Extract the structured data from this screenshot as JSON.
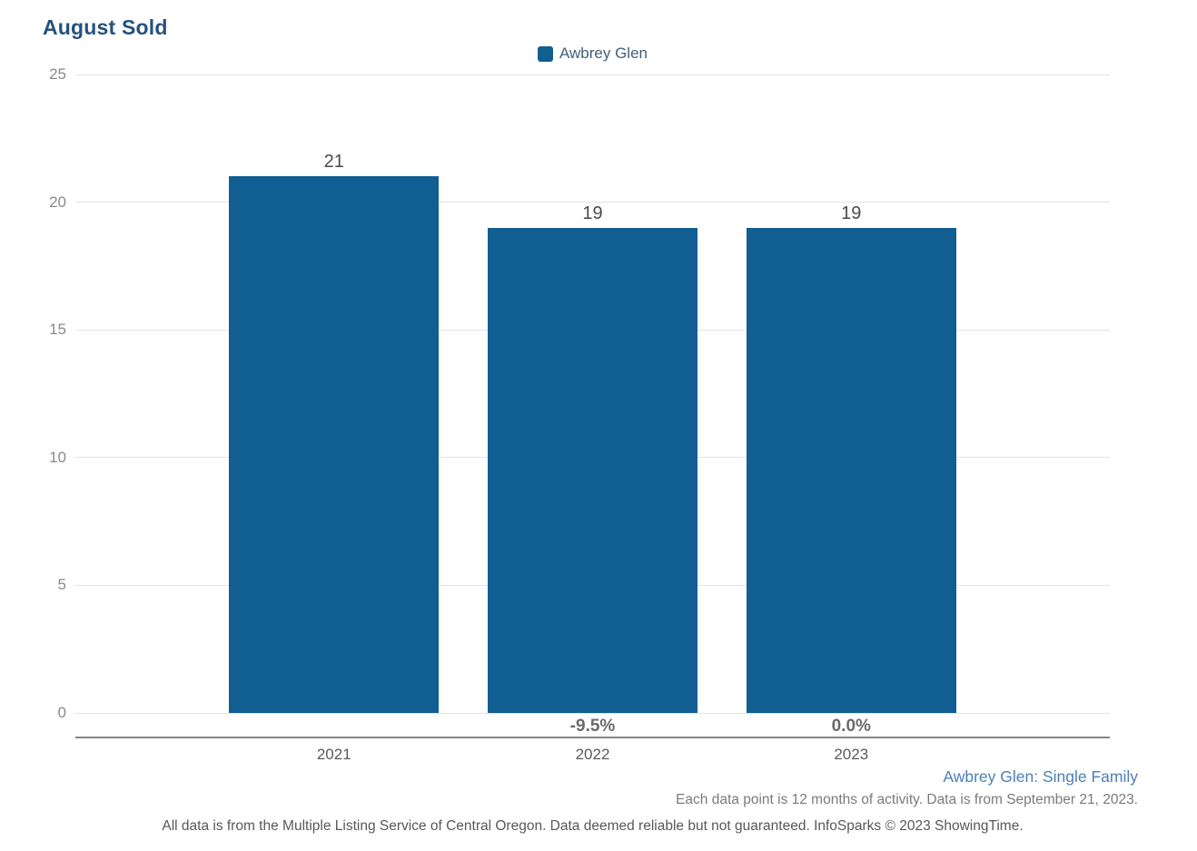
{
  "title": "August Sold",
  "legend": {
    "label": "Awbrey Glen"
  },
  "colors": {
    "bar": "#115e92",
    "title": "#25517c",
    "link": "#4d7fb5"
  },
  "chart_data": {
    "type": "bar",
    "title": "August Sold",
    "series_name": "Awbrey Glen",
    "categories": [
      "2021",
      "2022",
      "2023"
    ],
    "values": [
      21,
      19,
      19
    ],
    "value_labels": [
      "21",
      "19",
      "19"
    ],
    "change_labels": [
      "",
      "-9.5%",
      "0.0%"
    ],
    "xlabel": "",
    "ylabel": "",
    "ylim": [
      0,
      25
    ],
    "yticks": [
      0,
      5,
      10,
      15,
      20,
      25
    ],
    "grid": true,
    "legend_position": "top-center",
    "bar_color": "#115e92"
  },
  "footer": {
    "series_link": "Awbrey Glen: Single Family",
    "data_note": "Each data point is 12 months of activity. Data is from September 21, 2023.",
    "disclaimer": "All data is from the Multiple Listing Service of Central Oregon. Data deemed reliable but not guaranteed. InfoSparks © 2023 ShowingTime."
  }
}
